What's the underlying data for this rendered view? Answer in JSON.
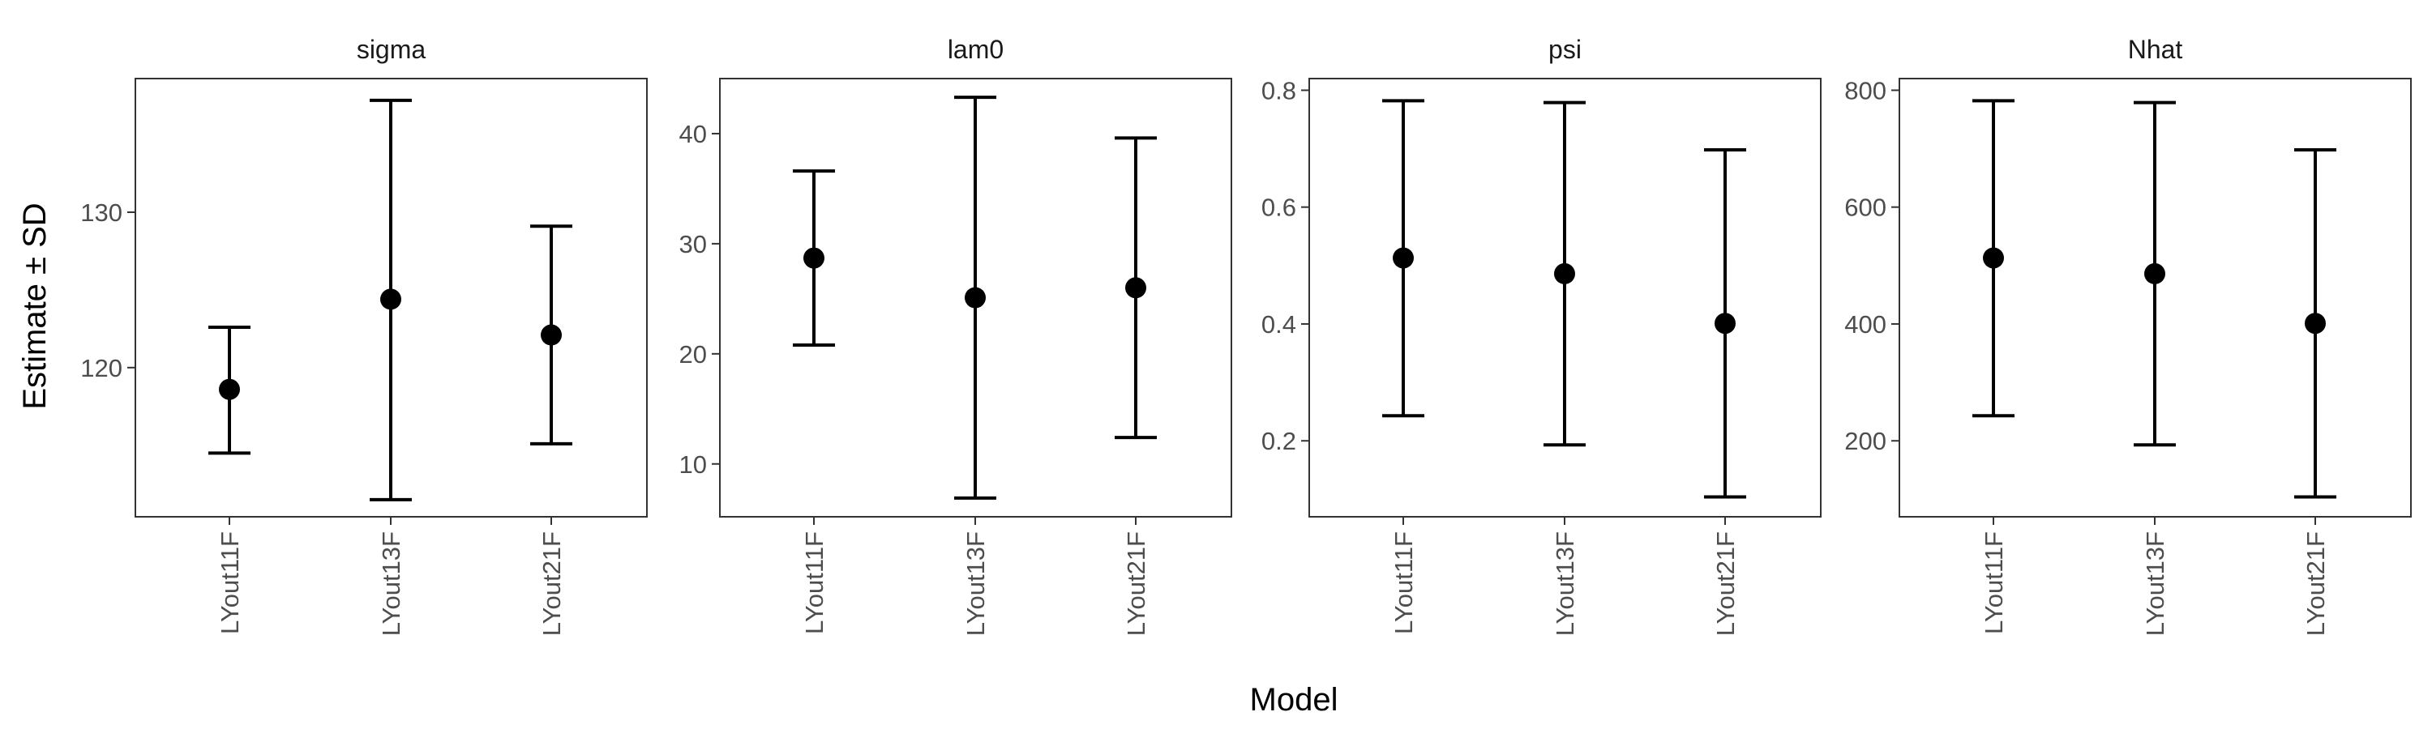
{
  "figure": {
    "ylabel": "Estimate ± SD",
    "xlabel": "Model"
  },
  "chart_data": {
    "type": "errorbar",
    "categories": [
      "LYout11F",
      "LYout13F",
      "LYout21F"
    ],
    "xlabel": "Model",
    "ylabel": "Estimate ± SD",
    "grid": false,
    "legend": "none",
    "panels": [
      {
        "title": "sigma",
        "ylim": [
          110.4,
          138.6
        ],
        "yticks": [
          120,
          130
        ],
        "series": [
          {
            "estimate": [
              118.6,
              124.4,
              122.1
            ],
            "lower": [
              114.5,
              111.5,
              115.1
            ],
            "upper": [
              122.6,
              137.2,
              129.1
            ]
          }
        ]
      },
      {
        "title": "lam0",
        "ylim": [
          5.2,
          45.0
        ],
        "yticks": [
          10,
          20,
          30,
          40
        ],
        "series": [
          {
            "estimate": [
              28.7,
              25.1,
              26.0
            ],
            "lower": [
              20.8,
              6.9,
              12.4
            ],
            "upper": [
              36.6,
              43.3,
              39.6
            ]
          }
        ]
      },
      {
        "title": "psi",
        "ylim": [
          0.07,
          0.82
        ],
        "yticks": [
          0.2,
          0.4,
          0.6,
          0.8
        ],
        "series": [
          {
            "estimate": [
              0.513,
              0.486,
              0.401
            ],
            "lower": [
              0.243,
              0.193,
              0.104
            ],
            "upper": [
              0.782,
              0.779,
              0.698
            ]
          }
        ]
      },
      {
        "title": "Nhat",
        "ylim": [
          70,
          820
        ],
        "yticks": [
          200,
          400,
          600,
          800
        ],
        "series": [
          {
            "estimate": [
              513,
              486,
              401
            ],
            "lower": [
              243,
              193,
              104
            ],
            "upper": [
              782,
              779,
              698
            ]
          }
        ]
      }
    ]
  }
}
